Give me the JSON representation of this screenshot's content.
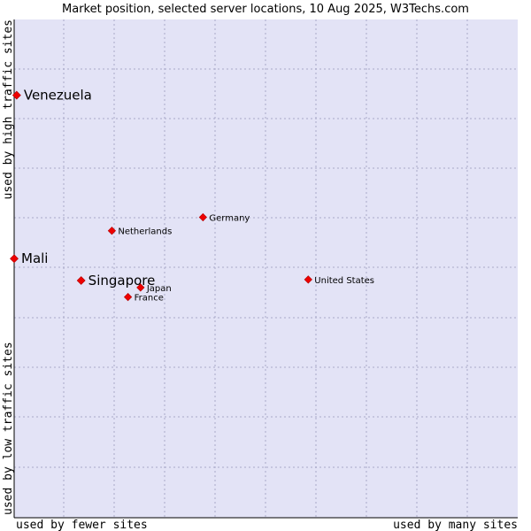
{
  "chart_data": {
    "type": "scatter",
    "title": "Market position, selected server locations, 10 Aug 2025, W3Techs.com",
    "xlabel": {
      "left": "used by fewer sites",
      "right": "used by many sites"
    },
    "ylabel": {
      "bottom": "used by low traffic sites",
      "top": "used by high traffic sites"
    },
    "xlim": [
      0,
      100
    ],
    "ylim": [
      0,
      100
    ],
    "grid": true,
    "points": [
      {
        "label": "Venezuela",
        "x": 0.5,
        "y": 84.8,
        "emphasis": true
      },
      {
        "label": "Mali",
        "x": 0.0,
        "y": 52.0,
        "emphasis": true
      },
      {
        "label": "Singapore",
        "x": 13.3,
        "y": 47.6,
        "emphasis": true
      },
      {
        "label": "Germany",
        "x": 37.5,
        "y": 60.3,
        "emphasis": false
      },
      {
        "label": "Netherlands",
        "x": 19.4,
        "y": 57.6,
        "emphasis": false
      },
      {
        "label": "United States",
        "x": 58.4,
        "y": 47.8,
        "emphasis": false
      },
      {
        "label": "Japan",
        "x": 25.1,
        "y": 46.2,
        "emphasis": false
      },
      {
        "label": "France",
        "x": 22.6,
        "y": 44.3,
        "emphasis": false
      }
    ]
  },
  "colors": {
    "plot_background": "#e3e3f6",
    "grid": "#a8a8c8",
    "axis": "#000000",
    "marker": "#ee0000",
    "text": "#000000"
  }
}
